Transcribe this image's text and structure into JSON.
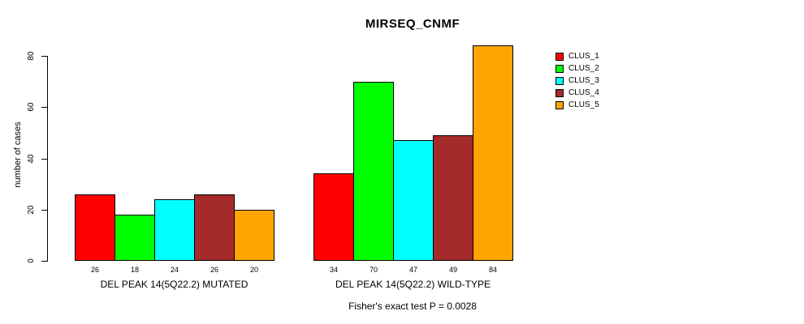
{
  "title": "MIRSEQ_CNMF",
  "footnote": "Fisher's exact test P = 0.0028",
  "palette": {
    "CLUS_1": "#ff0000",
    "CLUS_2": "#00ff00",
    "CLUS_3": "#00ffff",
    "CLUS_4": "#a52a2a",
    "CLUS_5": "#ffa500",
    "axis": "#000000",
    "background": "#ffffff"
  },
  "chart_data": {
    "type": "bar",
    "title": "MIRSEQ_CNMF",
    "xlabel": "",
    "ylabel": "number of cases",
    "ylim": [
      0,
      84
    ],
    "yticks": [
      0,
      20,
      40,
      60,
      80
    ],
    "grid": false,
    "legend_position": "right",
    "categories": [
      "DEL PEAK 14(5Q22.2) MUTATED",
      "DEL PEAK 14(5Q22.2) WILD-TYPE"
    ],
    "series": [
      {
        "name": "CLUS_1",
        "color": "#ff0000",
        "values": [
          26,
          34
        ]
      },
      {
        "name": "CLUS_2",
        "color": "#00ff00",
        "values": [
          18,
          70
        ]
      },
      {
        "name": "CLUS_3",
        "color": "#00ffff",
        "values": [
          24,
          47
        ]
      },
      {
        "name": "CLUS_4",
        "color": "#a52a2a",
        "values": [
          26,
          49
        ]
      },
      {
        "name": "CLUS_5",
        "color": "#ffa500",
        "values": [
          20,
          84
        ]
      }
    ],
    "bar_value_labels": [
      [
        26,
        18,
        24,
        26,
        20
      ],
      [
        34,
        70,
        47,
        49,
        84
      ]
    ],
    "annotation": "Fisher's exact test P = 0.0028"
  }
}
